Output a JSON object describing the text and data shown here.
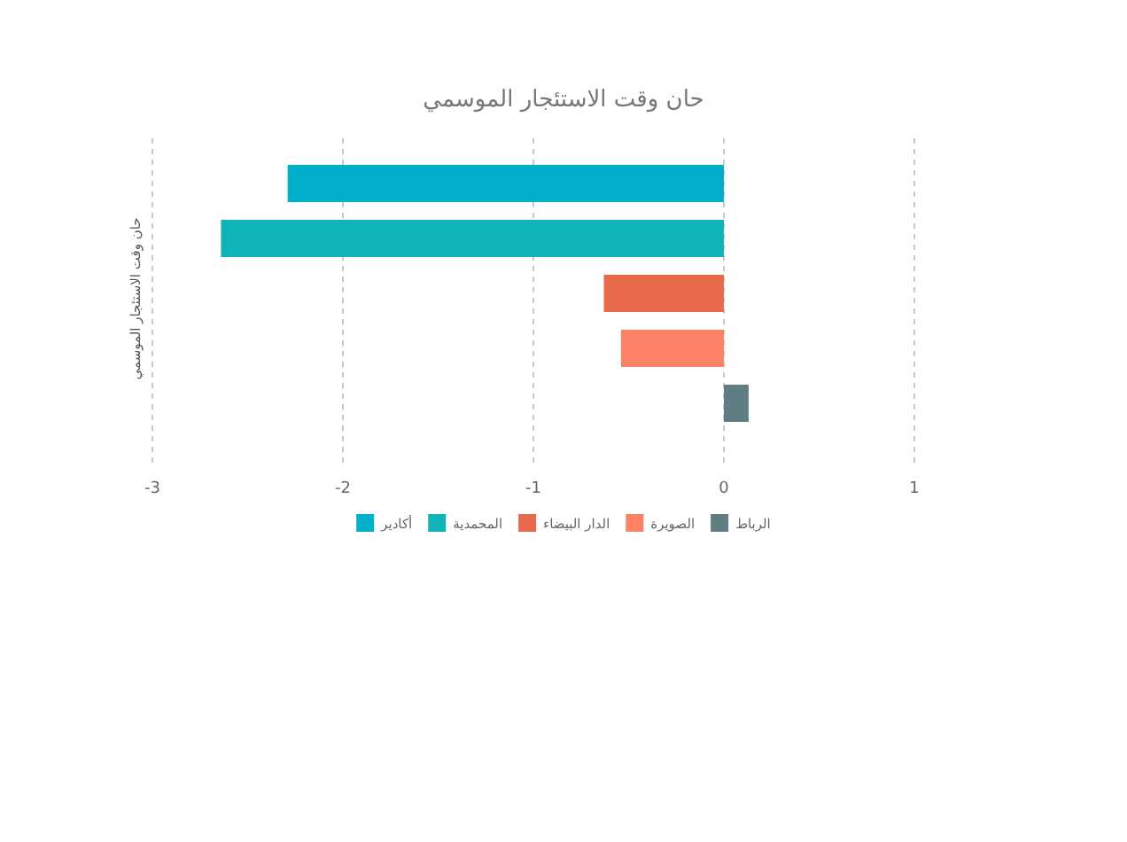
{
  "chart_data": {
    "type": "bar",
    "orientation": "horizontal",
    "title": "حان وقت الاستئجار الموسمي",
    "ylabel": "حان وقت الاستئجار الموسمي",
    "categories": [
      null
    ],
    "series": [
      {
        "name": "أكادير",
        "color": "#00afc9",
        "values": [
          -2.29
        ]
      },
      {
        "name": "المحمدية",
        "color": "#10b3b8",
        "values": [
          -2.64
        ]
      },
      {
        "name": "الدار البيضاء",
        "color": "#e86a4d",
        "values": [
          -0.63
        ]
      },
      {
        "name": "الصويرة",
        "color": "#fb8264",
        "values": [
          -0.54
        ]
      },
      {
        "name": "الرباط",
        "color": "#5f7e84",
        "values": [
          0.13
        ]
      }
    ],
    "xlim": [
      -3,
      1
    ],
    "xticks": [
      -3,
      -2,
      -1,
      0,
      1
    ],
    "grid": "x",
    "legend": "bottom"
  }
}
